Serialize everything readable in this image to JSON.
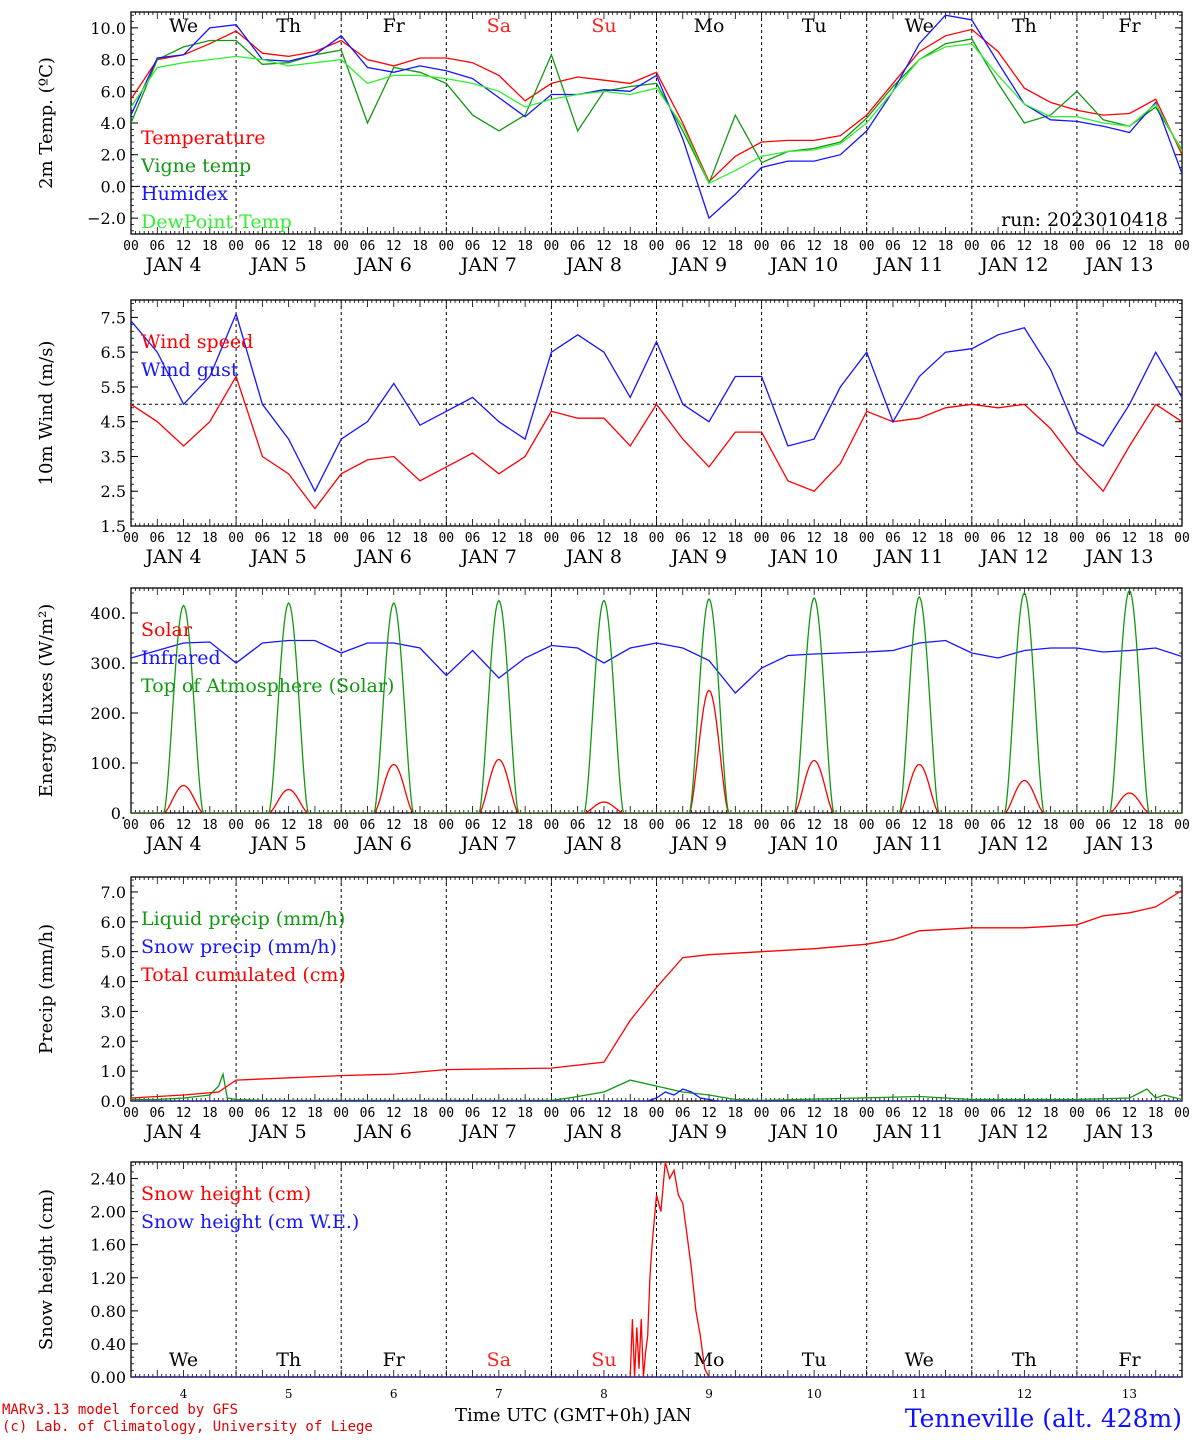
{
  "colors": {
    "red": "#ff0000",
    "green": "#119911",
    "blue": "#1515ff",
    "lightgreen": "#33ee33",
    "black": "#000000",
    "weekend": "#ff2020"
  },
  "days": [
    "We",
    "Th",
    "Fr",
    "Sa",
    "Su",
    "Mo",
    "Tu",
    "We",
    "Th",
    "Fr"
  ],
  "weekend_days": [
    3,
    4
  ],
  "dates": [
    "JAN 4",
    "JAN 5",
    "JAN 6",
    "JAN 7",
    "JAN 8",
    "JAN 9",
    "JAN 10",
    "JAN 11",
    "JAN 12",
    "JAN 13"
  ],
  "hour_labels": [
    "00",
    "06",
    "12",
    "18"
  ],
  "last_hour_label": "00",
  "bottom_day_numbers": [
    "4",
    "5",
    "6",
    "7",
    "8",
    "9",
    "10",
    "11",
    "12",
    "13"
  ],
  "footer": {
    "model": "MARv3.13 model forced by GFS",
    "lab": "(c) Lab. of Climatology, University of Liege",
    "xlabel": "Time UTC (GMT+0h) JAN",
    "station": "Tenneville (alt. 428m)"
  },
  "chart_data": [
    {
      "id": "temp",
      "type": "line",
      "ylabel": "2m Temp. (ºC)",
      "ylim": [
        -3.0,
        11.0
      ],
      "yticks": [
        -2.0,
        0.0,
        2.0,
        4.0,
        6.0,
        8.0,
        10.0
      ],
      "ytick_labels": [
        "−2.0",
        "0.0",
        "2.0",
        "4.0",
        "6.0",
        "8.0",
        "10.0"
      ],
      "ref_line": 0.0,
      "annotation": "run: 2023010418",
      "series": [
        {
          "name": "Temperature",
          "color": "red",
          "x": [
            0,
            6,
            12,
            18,
            24,
            30,
            36,
            42,
            48,
            54,
            60,
            66,
            72,
            78,
            84,
            90,
            96,
            102,
            108,
            114,
            120,
            126,
            132,
            138,
            144,
            150,
            156,
            162,
            168,
            174,
            180,
            186,
            192,
            198,
            204,
            210,
            216,
            222,
            228,
            234,
            240
          ],
          "y": [
            5.5,
            8.0,
            8.3,
            9.0,
            9.8,
            8.4,
            8.2,
            8.5,
            9.2,
            8.0,
            7.6,
            8.1,
            8.1,
            7.8,
            7.0,
            5.4,
            6.5,
            6.9,
            6.7,
            6.5,
            7.2,
            4.0,
            0.3,
            1.9,
            2.8,
            2.9,
            2.9,
            3.2,
            4.5,
            6.5,
            8.5,
            9.5,
            9.9,
            8.5,
            6.2,
            5.3,
            4.8,
            4.5,
            4.6,
            5.5,
            2.0
          ]
        },
        {
          "name": "Vigne temp",
          "color": "green",
          "x": [
            0,
            6,
            12,
            18,
            24,
            30,
            36,
            42,
            48,
            54,
            60,
            66,
            72,
            78,
            84,
            90,
            96,
            102,
            108,
            114,
            120,
            126,
            132,
            138,
            144,
            150,
            156,
            162,
            168,
            174,
            180,
            186,
            192,
            198,
            204,
            210,
            216,
            222,
            228,
            234,
            240
          ],
          "y": [
            4.0,
            8.0,
            8.8,
            9.2,
            9.2,
            7.7,
            7.8,
            8.3,
            8.6,
            4.0,
            7.5,
            7.2,
            6.5,
            4.5,
            3.5,
            4.5,
            8.3,
            3.5,
            6.0,
            6.3,
            6.5,
            3.5,
            0.2,
            4.5,
            1.5,
            2.2,
            2.4,
            2.8,
            4.3,
            6.3,
            8.0,
            9.0,
            9.3,
            6.5,
            4.0,
            4.5,
            6.0,
            4.2,
            3.8,
            5.0,
            2.3
          ]
        },
        {
          "name": "Humidex",
          "color": "blue",
          "x": [
            0,
            6,
            12,
            18,
            24,
            30,
            36,
            42,
            48,
            54,
            60,
            66,
            72,
            78,
            84,
            90,
            96,
            102,
            108,
            114,
            120,
            126,
            132,
            138,
            144,
            150,
            156,
            162,
            168,
            174,
            180,
            186,
            192,
            198,
            204,
            210,
            216,
            222,
            228,
            234,
            240
          ],
          "y": [
            4.5,
            8.1,
            8.3,
            10.0,
            10.2,
            8.0,
            7.9,
            8.3,
            9.5,
            7.5,
            7.2,
            7.6,
            7.3,
            6.8,
            5.6,
            4.4,
            5.8,
            5.8,
            6.1,
            6.0,
            7.0,
            3.0,
            -2.0,
            -0.5,
            1.2,
            1.6,
            1.6,
            2.0,
            3.5,
            6.0,
            9.0,
            10.8,
            10.5,
            7.8,
            5.2,
            4.2,
            4.1,
            3.8,
            3.4,
            5.3,
            0.8
          ]
        },
        {
          "name": "DewPoint Temp",
          "color": "lightgreen",
          "x": [
            0,
            6,
            12,
            18,
            24,
            30,
            36,
            42,
            48,
            54,
            60,
            66,
            72,
            78,
            84,
            90,
            96,
            102,
            108,
            114,
            120,
            126,
            132,
            138,
            144,
            150,
            156,
            162,
            168,
            174,
            180,
            186,
            192,
            198,
            204,
            210,
            216,
            222,
            228,
            234,
            240
          ],
          "y": [
            5.0,
            7.5,
            7.8,
            8.0,
            8.2,
            8.0,
            7.6,
            7.8,
            8.0,
            6.5,
            7.0,
            7.0,
            6.8,
            6.5,
            6.0,
            5.0,
            5.5,
            5.8,
            6.0,
            5.8,
            6.2,
            3.8,
            0.2,
            1.0,
            1.9,
            2.2,
            2.3,
            2.7,
            4.0,
            6.0,
            8.0,
            8.8,
            9.0,
            7.0,
            5.2,
            4.4,
            4.4,
            4.0,
            3.8,
            5.2,
            2.2
          ]
        }
      ]
    },
    {
      "id": "wind",
      "type": "line",
      "ylabel": "10m Wind (m/s)",
      "ylim": [
        1.5,
        8.0
      ],
      "yticks": [
        1.5,
        2.5,
        3.5,
        4.5,
        5.5,
        6.5,
        7.5
      ],
      "ytick_labels": [
        "1.5",
        "2.5",
        "3.5",
        "4.5",
        "5.5",
        "6.5",
        "7.5"
      ],
      "ref_line": 5.0,
      "series": [
        {
          "name": "Wind speed",
          "color": "red",
          "x": [
            0,
            6,
            12,
            18,
            24,
            30,
            36,
            42,
            48,
            54,
            60,
            66,
            72,
            78,
            84,
            90,
            96,
            102,
            108,
            114,
            120,
            126,
            132,
            138,
            144,
            150,
            156,
            162,
            168,
            174,
            180,
            186,
            192,
            198,
            204,
            210,
            216,
            222,
            228,
            234,
            240
          ],
          "y": [
            5.0,
            4.5,
            3.8,
            4.5,
            5.8,
            3.5,
            3.0,
            2.0,
            3.0,
            3.4,
            3.5,
            2.8,
            3.2,
            3.6,
            3.0,
            3.5,
            4.8,
            4.6,
            4.6,
            3.8,
            5.0,
            4.0,
            3.2,
            4.2,
            4.2,
            2.8,
            2.5,
            3.3,
            4.8,
            4.5,
            4.6,
            4.9,
            5.0,
            4.9,
            5.0,
            4.3,
            3.3,
            2.5,
            3.8,
            5.0,
            4.5
          ]
        },
        {
          "name": "Wind gust",
          "color": "blue",
          "x": [
            0,
            6,
            12,
            18,
            24,
            30,
            36,
            42,
            48,
            54,
            60,
            66,
            72,
            78,
            84,
            90,
            96,
            102,
            108,
            114,
            120,
            126,
            132,
            138,
            144,
            150,
            156,
            162,
            168,
            174,
            180,
            186,
            192,
            198,
            204,
            210,
            216,
            222,
            228,
            234,
            240
          ],
          "y": [
            7.4,
            6.5,
            5.0,
            5.8,
            7.6,
            5.0,
            4.0,
            2.5,
            4.0,
            4.5,
            5.6,
            4.4,
            4.8,
            5.2,
            4.5,
            4.0,
            6.5,
            7.0,
            6.5,
            5.2,
            6.8,
            5.0,
            4.5,
            5.8,
            5.8,
            3.8,
            4.0,
            5.5,
            6.5,
            4.5,
            5.8,
            6.5,
            6.6,
            7.0,
            7.2,
            6.0,
            4.2,
            3.8,
            5.0,
            6.5,
            5.2
          ]
        }
      ]
    },
    {
      "id": "energy",
      "type": "line",
      "ylabel": "Energy fluxes (W/m²)",
      "ylim": [
        0,
        450
      ],
      "yticks": [
        0,
        100,
        200,
        300,
        400
      ],
      "ytick_labels": [
        "0.",
        "100.",
        "200.",
        "300.",
        "400."
      ],
      "series": [
        {
          "name": "Solar",
          "color": "red",
          "peaks": [
            55,
            47,
            97,
            107,
            22,
            245,
            105,
            97,
            65,
            40
          ]
        },
        {
          "name": "Infrared",
          "color": "blue",
          "x": [
            0,
            6,
            12,
            18,
            24,
            30,
            36,
            42,
            48,
            54,
            60,
            66,
            72,
            78,
            84,
            90,
            96,
            102,
            108,
            114,
            120,
            126,
            132,
            138,
            144,
            150,
            156,
            162,
            168,
            174,
            180,
            186,
            192,
            198,
            204,
            210,
            216,
            222,
            228,
            234,
            240
          ],
          "y": [
            310,
            325,
            340,
            342,
            300,
            340,
            345,
            345,
            320,
            340,
            340,
            330,
            275,
            325,
            270,
            310,
            335,
            330,
            300,
            330,
            340,
            330,
            305,
            240,
            290,
            315,
            318,
            320,
            322,
            325,
            340,
            345,
            320,
            310,
            325,
            330,
            330,
            322,
            325,
            330,
            313
          ]
        },
        {
          "name": "Top of Atmosphere (Solar)",
          "color": "green",
          "peaks": [
            415,
            420,
            420,
            425,
            425,
            428,
            430,
            432,
            440,
            445
          ]
        }
      ]
    },
    {
      "id": "precip",
      "type": "line",
      "ylabel": "Precip (mm/h)",
      "ylim": [
        0,
        7.5
      ],
      "yticks": [
        0,
        1,
        2,
        3,
        4,
        5,
        6,
        7
      ],
      "ytick_labels": [
        "0.0",
        "1.0",
        "2.0",
        "3.0",
        "4.0",
        "5.0",
        "6.0",
        "7.0"
      ],
      "series": [
        {
          "name": "Liquid precip (mm/h)",
          "color": "green",
          "x": [
            0,
            6,
            12,
            18,
            20,
            21,
            22,
            24,
            30,
            48,
            96,
            100,
            108,
            114,
            120,
            126,
            132,
            138,
            144,
            180,
            192,
            216,
            228,
            232,
            234,
            236,
            240
          ],
          "y": [
            0.05,
            0.05,
            0.1,
            0.2,
            0.5,
            0.9,
            0.1,
            0.05,
            0.02,
            0.02,
            0.02,
            0.1,
            0.3,
            0.7,
            0.5,
            0.3,
            0.2,
            0.05,
            0.02,
            0.15,
            0.05,
            0.05,
            0.1,
            0.4,
            0.1,
            0.2,
            0.05
          ]
        },
        {
          "name": "Snow precip (mm/h)",
          "color": "blue",
          "x": [
            0,
            118,
            120,
            122,
            124,
            126,
            128,
            130,
            134,
            140,
            240
          ],
          "y": [
            0,
            0,
            0.1,
            0.3,
            0.2,
            0.4,
            0.3,
            0.1,
            0,
            0,
            0
          ]
        },
        {
          "name": "Total cumulated (cm)",
          "color": "red",
          "x": [
            0,
            12,
            20,
            24,
            48,
            60,
            72,
            96,
            108,
            114,
            120,
            126,
            132,
            138,
            144,
            150,
            156,
            168,
            174,
            180,
            192,
            204,
            216,
            222,
            228,
            234,
            240
          ],
          "y": [
            0.1,
            0.2,
            0.3,
            0.7,
            0.85,
            0.9,
            1.05,
            1.1,
            1.3,
            2.7,
            3.8,
            4.8,
            4.9,
            4.95,
            5.0,
            5.05,
            5.1,
            5.25,
            5.4,
            5.7,
            5.8,
            5.8,
            5.9,
            6.2,
            6.3,
            6.5,
            7.05
          ]
        }
      ]
    },
    {
      "id": "snow",
      "type": "line",
      "ylabel": "Snow height (cm)",
      "ylim": [
        0,
        2.6
      ],
      "yticks": [
        0,
        0.4,
        0.8,
        1.2,
        1.6,
        2.0,
        2.4
      ],
      "ytick_labels": [
        "0.00",
        "0.40",
        "0.80",
        "1.20",
        "1.60",
        "2.00",
        "2.40"
      ],
      "series": [
        {
          "name": "Snow height (cm)",
          "color": "red",
          "x": [
            0,
            114,
            114.5,
            115,
            115.5,
            116,
            116.5,
            117,
            117.5,
            118,
            118.5,
            119,
            120,
            121,
            122,
            123,
            124,
            125,
            126,
            127,
            128,
            129,
            130,
            131,
            132,
            240
          ],
          "y": [
            0,
            0,
            0.7,
            0,
            0.6,
            0.1,
            0.7,
            0,
            0.3,
            0.5,
            1.2,
            1.6,
            2.2,
            2.0,
            2.6,
            2.4,
            2.5,
            2.2,
            2.1,
            1.7,
            1.3,
            0.8,
            0.5,
            0.1,
            0,
            0
          ]
        },
        {
          "name": "Snow height (cm W.E.)",
          "color": "blue",
          "x": [
            0,
            240
          ],
          "y": [
            0,
            0
          ]
        }
      ]
    }
  ]
}
